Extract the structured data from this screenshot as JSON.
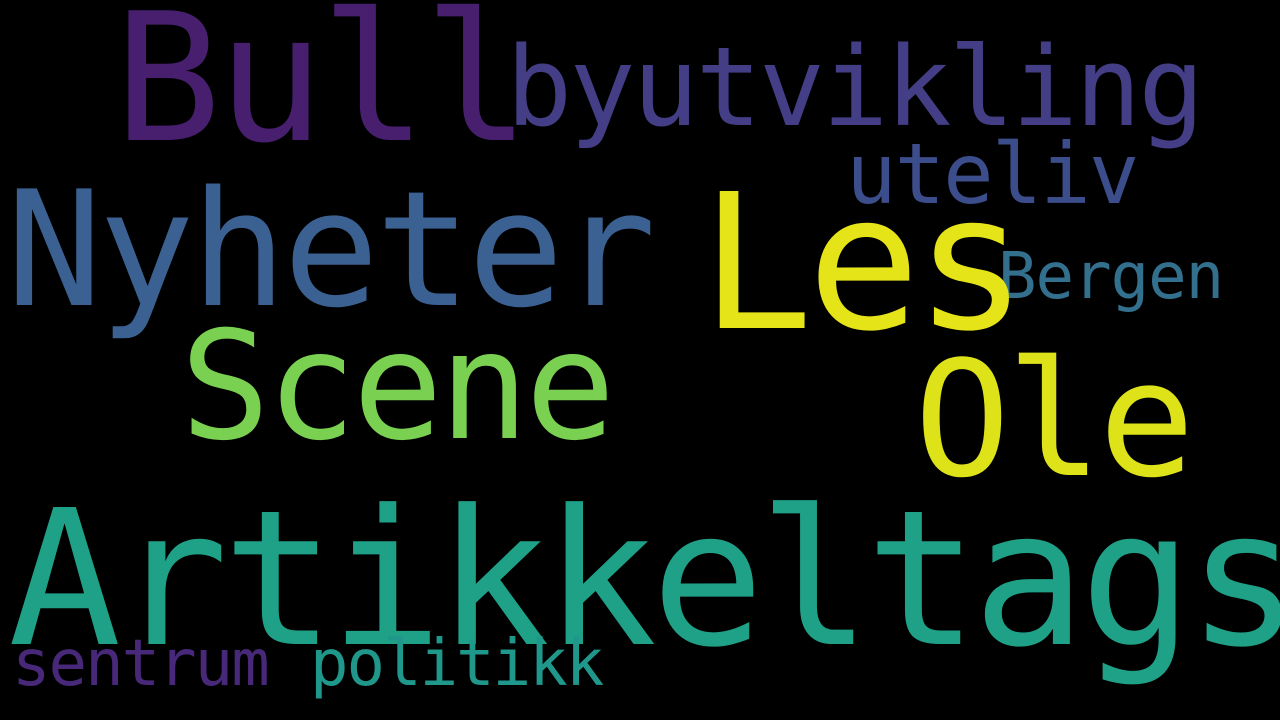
{
  "background_color": "#000000",
  "words": [
    {
      "text": "Artikkeltags",
      "color": "#1fa187"
    },
    {
      "text": "Bull",
      "color": "#471f6e"
    },
    {
      "text": "byutvikling",
      "color": "#433e85"
    },
    {
      "text": "uteliv",
      "color": "#3b4d8a"
    },
    {
      "text": "Nyheter",
      "color": "#3b6192"
    },
    {
      "text": "Les",
      "color": "#e5e419"
    },
    {
      "text": "Bergen",
      "color": "#33708e"
    },
    {
      "text": "Scene",
      "color": "#7ad151"
    },
    {
      "text": "Ole",
      "color": "#dde318"
    },
    {
      "text": "sentrum",
      "color": "#482878"
    },
    {
      "text": "politikk",
      "color": "#1f988b"
    }
  ]
}
